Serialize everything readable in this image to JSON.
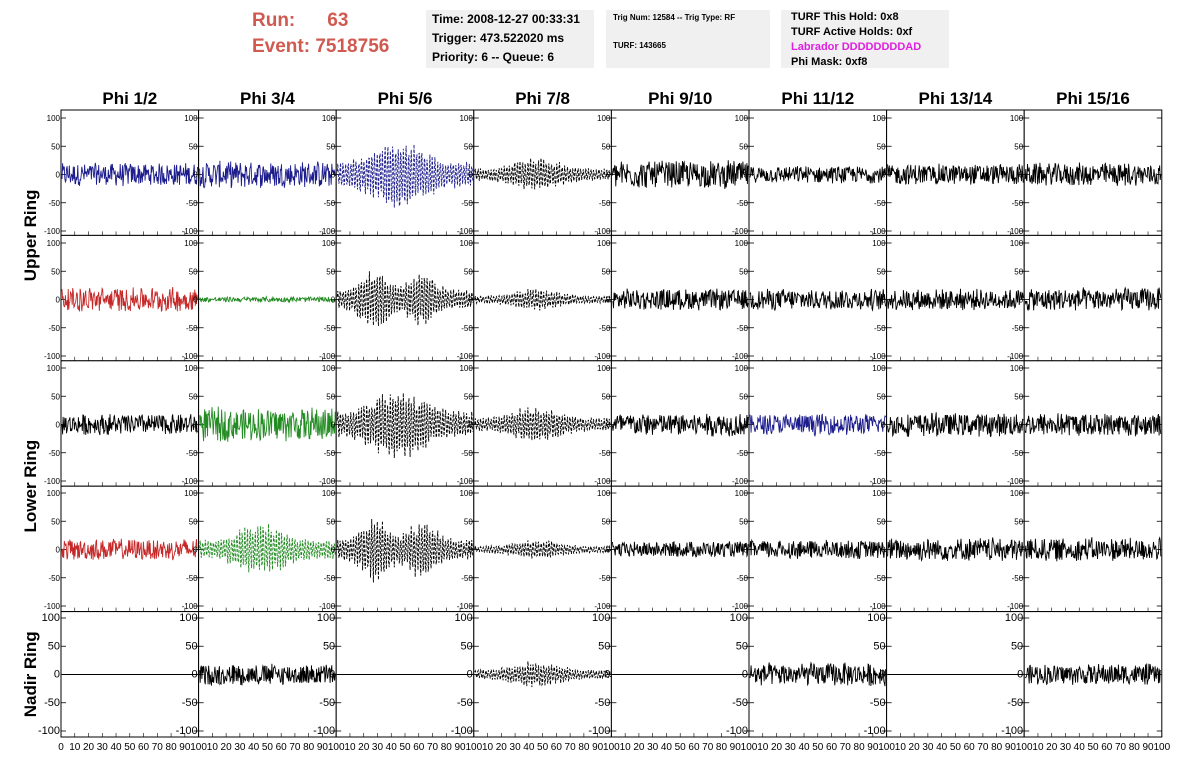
{
  "header": {
    "run_label": "Run:",
    "run_value": "63",
    "event_label": "Event:",
    "event_value": "7518756",
    "time": "Time: 2008-12-27 00:33:31",
    "trigger": "Trigger: 473.522020 ms",
    "priority": "Priority: 6 -- Queue: 6",
    "trig_num": "Trig Num: 12584 -- Trig Type: RF",
    "turf": "TURF: 143665",
    "turf_hold": "TURF This Hold: 0x8",
    "turf_active": "TURF Active Holds: 0xf",
    "labrador": "Labrador DDDDDDDDAD",
    "phi_mask": "Phi Mask: 0xf8"
  },
  "colors": {
    "header_red": "#d05a50",
    "labrador_magenta": "#e020e0",
    "box_bg": "#f0f0f0",
    "blue": "#1c1c8c",
    "red": "#c62828",
    "green": "#228b22",
    "black": "#000000"
  },
  "chart_data": {
    "type": "line",
    "columns": [
      "Phi 1/2",
      "Phi 3/4",
      "Phi 5/6",
      "Phi 7/8",
      "Phi 9/10",
      "Phi 11/12",
      "Phi 13/14",
      "Phi 15/16"
    ],
    "rows": [
      "Upper Ring",
      "Upper Ring",
      "Lower Ring",
      "Lower Ring",
      "Nadir Ring"
    ],
    "row_labels": [
      "Upper Ring",
      "Lower Ring",
      "Nadir Ring"
    ],
    "xlim": [
      0,
      100
    ],
    "ylim": [
      -100,
      100
    ],
    "x_ticks": [
      0,
      10,
      20,
      30,
      40,
      50,
      60,
      70,
      80,
      90,
      100
    ],
    "y_ticks": [
      100,
      50,
      0,
      -50,
      -100
    ],
    "y_tick_labels": [
      "100",
      "50",
      "0",
      "-50",
      "-100"
    ],
    "nadir_y_ticks": [
      100,
      50,
      0,
      -50,
      -100
    ],
    "panels": [
      [
        {
          "color": "blue",
          "style": "solid",
          "amplitude": 22,
          "envelope": "flat"
        },
        {
          "color": "blue",
          "style": "solid",
          "amplitude": 25,
          "envelope": "flat"
        },
        {
          "color": "blue",
          "style": "dashed",
          "amplitude": 70,
          "envelope": "burst"
        },
        {
          "color": "black",
          "style": "dashed",
          "amplitude": 32,
          "envelope": "burst"
        },
        {
          "color": "black",
          "style": "solid",
          "amplitude": 26,
          "envelope": "flat"
        },
        {
          "color": "black",
          "style": "solid",
          "amplitude": 16,
          "envelope": "flat"
        },
        {
          "color": "black",
          "style": "solid",
          "amplitude": 20,
          "envelope": "flat"
        },
        {
          "color": "black",
          "style": "solid",
          "amplitude": 22,
          "envelope": "flat"
        }
      ],
      [
        {
          "color": "red",
          "style": "solid",
          "amplitude": 23,
          "envelope": "flat"
        },
        {
          "color": "green",
          "style": "solid",
          "amplitude": 5,
          "envelope": "flat"
        },
        {
          "color": "black",
          "style": "dashed",
          "amplitude": 58,
          "envelope": "double"
        },
        {
          "color": "black",
          "style": "dashed",
          "amplitude": 20,
          "envelope": "burst"
        },
        {
          "color": "black",
          "style": "solid",
          "amplitude": 20,
          "envelope": "flat"
        },
        {
          "color": "black",
          "style": "solid",
          "amplitude": 20,
          "envelope": "flat"
        },
        {
          "color": "black",
          "style": "solid",
          "amplitude": 20,
          "envelope": "flat"
        },
        {
          "color": "black",
          "style": "solid",
          "amplitude": 22,
          "envelope": "flat"
        }
      ],
      [
        {
          "color": "black",
          "style": "solid",
          "amplitude": 20,
          "envelope": "flat"
        },
        {
          "color": "green",
          "style": "solid",
          "amplitude": 32,
          "envelope": "flat"
        },
        {
          "color": "black",
          "style": "dashed",
          "amplitude": 70,
          "envelope": "burst"
        },
        {
          "color": "black",
          "style": "dashed",
          "amplitude": 35,
          "envelope": "burst"
        },
        {
          "color": "black",
          "style": "solid",
          "amplitude": 22,
          "envelope": "flat"
        },
        {
          "color": "blue",
          "style": "solid",
          "amplitude": 20,
          "envelope": "flat"
        },
        {
          "color": "black",
          "style": "solid",
          "amplitude": 22,
          "envelope": "flat"
        },
        {
          "color": "black",
          "style": "solid",
          "amplitude": 22,
          "envelope": "flat"
        }
      ],
      [
        {
          "color": "red",
          "style": "solid",
          "amplitude": 20,
          "envelope": "flat"
        },
        {
          "color": "green",
          "style": "dashed",
          "amplitude": 48,
          "envelope": "burst"
        },
        {
          "color": "black",
          "style": "dashed",
          "amplitude": 62,
          "envelope": "double"
        },
        {
          "color": "black",
          "style": "dashed",
          "amplitude": 18,
          "envelope": "burst"
        },
        {
          "color": "black",
          "style": "solid",
          "amplitude": 15,
          "envelope": "flat"
        },
        {
          "color": "black",
          "style": "solid",
          "amplitude": 18,
          "envelope": "flat"
        },
        {
          "color": "black",
          "style": "solid",
          "amplitude": 22,
          "envelope": "flat"
        },
        {
          "color": "black",
          "style": "solid",
          "amplitude": 22,
          "envelope": "flat"
        }
      ],
      [
        {
          "color": "black",
          "style": "solid",
          "amplitude": 0,
          "envelope": "flat"
        },
        {
          "color": "black",
          "style": "solid",
          "amplitude": 20,
          "envelope": "flat"
        },
        {
          "color": "black",
          "style": "solid",
          "amplitude": 0,
          "envelope": "flat"
        },
        {
          "color": "black",
          "style": "dashed",
          "amplitude": 25,
          "envelope": "burst"
        },
        {
          "color": "black",
          "style": "solid",
          "amplitude": 0,
          "envelope": "flat"
        },
        {
          "color": "black",
          "style": "solid",
          "amplitude": 22,
          "envelope": "flat"
        },
        {
          "color": "black",
          "style": "solid",
          "amplitude": 0,
          "envelope": "flat"
        },
        {
          "color": "black",
          "style": "solid",
          "amplitude": 20,
          "envelope": "flat"
        }
      ]
    ]
  }
}
